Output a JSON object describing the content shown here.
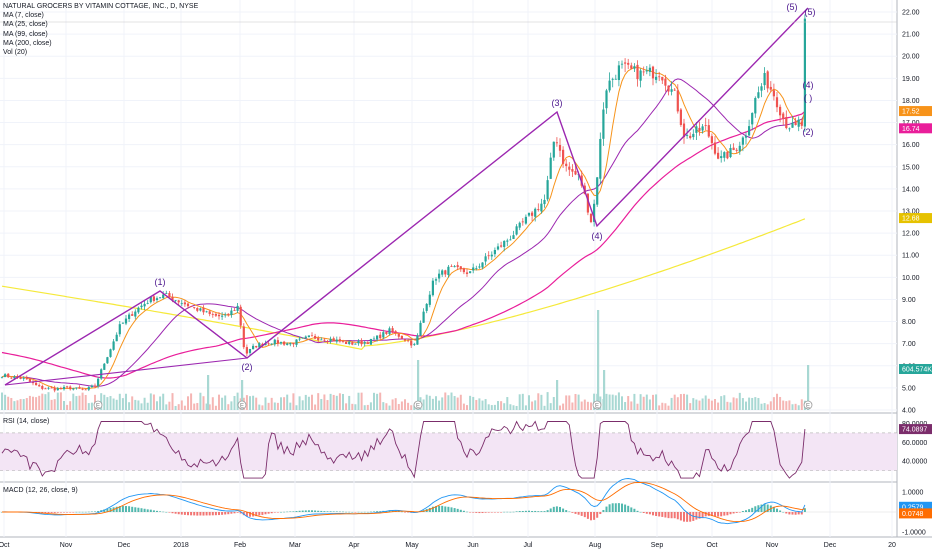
{
  "legend": {
    "title": "NATURAL GROCERS BY VITAMIN COTTAGE, INC., D, NYSE",
    "ma7": "MA (7, close)",
    "ma25": "MA (25, close)",
    "ma99": "MA (99, close)",
    "ma200": "MA (200, close)",
    "vol": "Vol (20)"
  },
  "rsi_label": "RSI (14, close)",
  "macd_label": "MACD (12, 26, close, 9)",
  "colors": {
    "up": "#26a69a",
    "down": "#ef5350",
    "ma7": "#f7931a",
    "ma25": "#9c27b0",
    "ma99": "#e91e9a",
    "ma200": "#f5e93a",
    "wave": "#9c27b0",
    "rsi_fill": "#f3e5f5",
    "rsi_line": "#7b2d6b",
    "macd_line": "#2196f3",
    "signal_line": "#ff6d00"
  },
  "price_badges": {
    "last": "17.52",
    "ma99": "16.74",
    "ma200": "12.68",
    "volume": "604.574K"
  },
  "rsi_badge": "74.0897",
  "macd_badges": {
    "macd": "0.2579",
    "signal": "0.0748"
  },
  "wave_labels": [
    "(1)",
    "(2)",
    "(3)",
    "(4)",
    "(5)",
    "(5)",
    "(4)",
    "( )",
    "(2)"
  ],
  "earnings_marker": "E",
  "chart_data": {
    "type": "candlestick",
    "price_axis": [
      "22.00",
      "21.00",
      "20.00",
      "19.00",
      "18.00",
      "17.00",
      "16.00",
      "15.00",
      "14.00",
      "13.00",
      "12.00",
      "11.00",
      "10.00",
      "9.00",
      "8.00",
      "7.00",
      "6.00",
      "5.00",
      "4.00"
    ],
    "rsi_axis": [
      "80.0000",
      "60.0000",
      "40.0000"
    ],
    "macd_axis": [
      "1.0000",
      "0.0000",
      "-1.0000"
    ],
    "time_axis": [
      "Oct",
      "Nov",
      "Dec",
      "2018",
      "Feb",
      "Mar",
      "Apr",
      "May",
      "Jun",
      "Jul",
      "Aug",
      "Sep",
      "Oct",
      "Nov",
      "Dec",
      "20"
    ],
    "price_keypoints": [
      [
        0,
        5.6
      ],
      [
        10,
        5.5
      ],
      [
        25,
        5.4
      ],
      [
        40,
        5.0
      ],
      [
        55,
        4.95
      ],
      [
        70,
        5.0
      ],
      [
        85,
        4.9
      ],
      [
        95,
        5.1
      ],
      [
        105,
        6.2
      ],
      [
        120,
        7.8
      ],
      [
        135,
        8.5
      ],
      [
        150,
        9.0
      ],
      [
        165,
        9.2
      ],
      [
        180,
        8.9
      ],
      [
        195,
        8.6
      ],
      [
        210,
        8.3
      ],
      [
        225,
        8.2
      ],
      [
        238,
        8.7
      ],
      [
        245,
        6.5
      ],
      [
        255,
        6.9
      ],
      [
        270,
        7.1
      ],
      [
        290,
        7.0
      ],
      [
        310,
        7.3
      ],
      [
        330,
        7.2
      ],
      [
        350,
        7.0
      ],
      [
        370,
        7.1
      ],
      [
        390,
        7.6
      ],
      [
        405,
        7.2
      ],
      [
        415,
        6.9
      ],
      [
        425,
        8.7
      ],
      [
        435,
        10.0
      ],
      [
        450,
        10.4
      ],
      [
        470,
        10.2
      ],
      [
        490,
        11.0
      ],
      [
        510,
        11.8
      ],
      [
        530,
        12.8
      ],
      [
        545,
        13.5
      ],
      [
        555,
        16.5
      ],
      [
        565,
        15.0
      ],
      [
        580,
        14.5
      ],
      [
        592,
        12.4
      ],
      [
        598,
        15.0
      ],
      [
        605,
        18.5
      ],
      [
        620,
        19.5
      ],
      [
        640,
        19.2
      ],
      [
        660,
        19.3
      ],
      [
        675,
        18.2
      ],
      [
        685,
        16.3
      ],
      [
        705,
        16.8
      ],
      [
        720,
        15.3
      ],
      [
        735,
        15.8
      ],
      [
        745,
        16.4
      ],
      [
        755,
        18.0
      ],
      [
        765,
        19.0
      ],
      [
        775,
        18.2
      ],
      [
        785,
        17.0
      ],
      [
        795,
        16.7
      ],
      [
        800,
        17.1
      ],
      [
        805,
        16.5
      ],
      [
        808,
        21.7
      ]
    ],
    "volume_spikes": [
      {
        "x": 208,
        "v": 0.35
      },
      {
        "x": 242,
        "v": 0.3
      },
      {
        "x": 418,
        "v": 0.5
      },
      {
        "x": 557,
        "v": 0.3
      },
      {
        "x": 598,
        "v": 1.0
      },
      {
        "x": 604,
        "v": 0.4
      },
      {
        "x": 808,
        "v": 0.45
      }
    ],
    "wave_points": [
      [
        5,
        385
      ],
      [
        160,
        291
      ],
      [
        247,
        358
      ],
      [
        557,
        112
      ],
      [
        597,
        226
      ],
      [
        808,
        8
      ],
      [
        808,
        128
      ]
    ]
  }
}
